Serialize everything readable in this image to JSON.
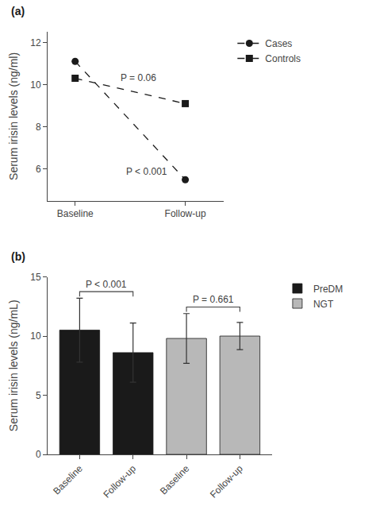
{
  "chart_data": [
    {
      "type": "line",
      "title": "(a)",
      "categories": [
        "Baseline",
        "Follow-up"
      ],
      "ylabel": "Serum irisin levels (ng/ml)",
      "ylim": [
        4.5,
        12.5
      ],
      "yticks": [
        6,
        8,
        10,
        12
      ],
      "series": [
        {
          "name": "Cases",
          "color": "#1a1a1a",
          "marker": "circle",
          "line_style": "dashed",
          "values": [
            11.1,
            5.5
          ]
        },
        {
          "name": "Controls",
          "color": "#1a1a1a",
          "marker": "square",
          "line_style": "dashed",
          "values": [
            10.3,
            9.1
          ]
        }
      ],
      "annotations": [
        "P = 0.06",
        "P < 0.001"
      ],
      "legend": "right",
      "grid": false
    },
    {
      "type": "bar",
      "title": "(b)",
      "categories": [
        "Baseline",
        "Follow-up",
        "Baseline",
        "Follow-up"
      ],
      "ylabel": "Serum irisin levels (ng/mL)",
      "ylim": [
        0,
        15
      ],
      "yticks": [
        0,
        5,
        10,
        15
      ],
      "series": [
        {
          "name": "PreDM",
          "color": "#1a1a1a",
          "values": [
            10.5,
            8.6,
            null,
            null
          ],
          "errors": [
            2.7,
            2.5,
            null,
            null
          ]
        },
        {
          "name": "NGT",
          "color": "#b8b8b8",
          "values": [
            null,
            null,
            9.8,
            10.0
          ],
          "errors": [
            null,
            null,
            2.1,
            1.15
          ]
        }
      ],
      "annotations": [
        "P < 0.001",
        "P = 0.661"
      ],
      "legend": "right",
      "grid": false
    }
  ]
}
